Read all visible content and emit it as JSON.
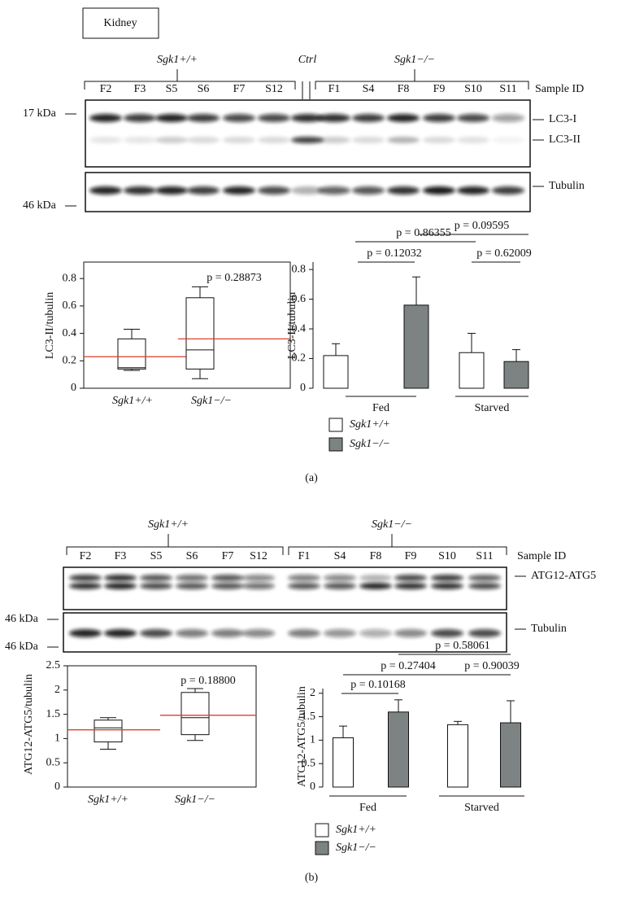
{
  "panel_a": {
    "tissue": "Kidney",
    "groups": [
      "Sgk1+/+",
      "Ctrl",
      "Sgk1−/−"
    ],
    "lanes": [
      "F2",
      "F3",
      "S5",
      "S6",
      "F7",
      "S12",
      "F1",
      "S4",
      "F8",
      "F9",
      "S10",
      "S11"
    ],
    "sample_id_label": "Sample ID",
    "markers": [
      "17 kDa",
      "46 kDa"
    ],
    "bands": [
      "LC3-I",
      "LC3-II",
      "Tubulin"
    ],
    "label": "(a)"
  },
  "panel_b": {
    "groups": [
      "Sgk1+/+",
      "Sgk1−/−"
    ],
    "lanes": [
      "F2",
      "F3",
      "S5",
      "S6",
      "F7",
      "S12",
      "F1",
      "S4",
      "F8",
      "F9",
      "S10",
      "S11"
    ],
    "sample_id_label": "Sample ID",
    "markers": [
      "46 kDa",
      "46 kDa"
    ],
    "bands": [
      "ATG12-ATG5",
      "Tubulin"
    ],
    "label": "(b)"
  },
  "chart_data": [
    {
      "type": "box",
      "ylabel": "LC3-II/tubulin",
      "categories": [
        "Sgk1+/+",
        "Sgk1−/−"
      ],
      "boxes": [
        {
          "min": 0.13,
          "q1": 0.14,
          "median": 0.15,
          "q3": 0.36,
          "max": 0.43,
          "mean": 0.23
        },
        {
          "min": 0.07,
          "q1": 0.14,
          "median": 0.28,
          "q3": 0.66,
          "max": 0.74,
          "mean": 0.36
        }
      ],
      "mean_color": "#d9412b",
      "ylim": [
        0,
        0.92
      ],
      "yticks": [
        0,
        0.2,
        0.4,
        0.6,
        0.8
      ],
      "annotation": "p = 0.28873"
    },
    {
      "type": "bar",
      "ylabel": "LC3-II/tubulin",
      "categories": [
        "Fed",
        "Starved"
      ],
      "series": [
        {
          "name": "Sgk1+/+",
          "color": "#ffffff",
          "values": [
            0.22,
            0.24
          ],
          "errors": [
            0.08,
            0.13
          ]
        },
        {
          "name": "Sgk1−/−",
          "color": "#7d8382",
          "values": [
            0.56,
            0.18
          ],
          "errors": [
            0.19,
            0.08
          ]
        }
      ],
      "ylim": [
        0,
        0.85
      ],
      "yticks": [
        0,
        0.2,
        0.4,
        0.6,
        0.8
      ],
      "comparisons": [
        "p = 0.12032",
        "p = 0.86355",
        "p = 0.09595",
        "p = 0.62009"
      ]
    },
    {
      "type": "box",
      "ylabel": "ATG12-ATG5/tubulin",
      "categories": [
        "Sgk1+/+",
        "Sgk1−/−"
      ],
      "boxes": [
        {
          "min": 0.78,
          "q1": 0.93,
          "median": 1.22,
          "q3": 1.38,
          "max": 1.43,
          "mean": 1.18
        },
        {
          "min": 0.96,
          "q1": 1.08,
          "median": 1.43,
          "q3": 1.95,
          "max": 2.03,
          "mean": 1.48
        }
      ],
      "mean_color": "#d9412b",
      "ylim": [
        0,
        2.5
      ],
      "yticks": [
        0,
        0.5,
        1,
        1.5,
        2,
        2.5
      ],
      "annotation": "p = 0.18800"
    },
    {
      "type": "bar",
      "ylabel": "ATG12-ATG5/tubulin",
      "categories": [
        "Fed",
        "Starved"
      ],
      "series": [
        {
          "name": "Sgk1+/+",
          "color": "#ffffff",
          "values": [
            1.05,
            1.33
          ],
          "errors": [
            0.25,
            0.07
          ]
        },
        {
          "name": "Sgk1−/−",
          "color": "#7d8382",
          "values": [
            1.6,
            1.37
          ],
          "errors": [
            0.26,
            0.47
          ]
        }
      ],
      "ylim": [
        0,
        2.1
      ],
      "yticks": [
        0,
        0.5,
        1,
        1.5,
        2
      ],
      "comparisons": [
        "p = 0.10168",
        "p = 0.27404",
        "p = 0.58061",
        "p = 0.90039"
      ]
    }
  ]
}
